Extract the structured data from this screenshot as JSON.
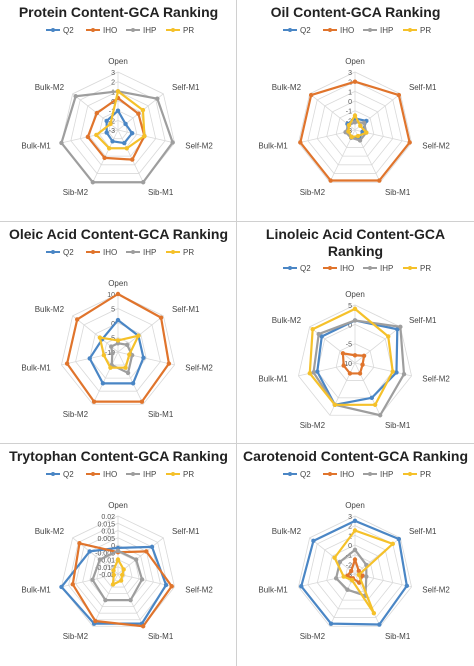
{
  "colors": {
    "Q2": "#4a86c5",
    "IHO": "#e0742c",
    "IHP": "#9e9e9e",
    "PR": "#f5c12a",
    "grid": "#d9d9d9"
  },
  "chart_data": [
    {
      "type": "radar",
      "title": "Protein Content-GCA Ranking",
      "categories": [
        "Open",
        "Self-M1",
        "Self-M2",
        "Sib-M1",
        "Sib-M2",
        "Bulk-M1",
        "Bulk-M2"
      ],
      "ticks": [
        "3",
        "2",
        "1",
        "0",
        "-1",
        "-2",
        "-3"
      ],
      "rmin": -3,
      "rmax": 3,
      "series": [
        {
          "name": "Q2",
          "values": [
            -1,
            -2,
            -1.5,
            -1.5,
            -1.7,
            -1.8,
            -1.5
          ]
        },
        {
          "name": "IHO",
          "values": [
            0.3,
            -0.3,
            -0.2,
            0.4,
            0.2,
            0.2,
            -0.2
          ]
        },
        {
          "name": "IHP",
          "values": [
            1,
            2.2,
            2.8,
            3,
            3,
            3,
            2.6
          ]
        },
        {
          "name": "PR",
          "values": [
            1,
            0.3,
            -0.2,
            -0.9,
            -0.9,
            -0.7,
            -2
          ]
        }
      ]
    },
    {
      "type": "radar",
      "title": "Oil Content-GCA Ranking",
      "categories": [
        "Open",
        "Self-M1",
        "Self-M2",
        "Sib-M1",
        "Sib-M2",
        "Bulk-M1",
        "Bulk-M2"
      ],
      "ticks": [
        "3",
        "2",
        "1",
        "0",
        "-1",
        "-2",
        "-3"
      ],
      "rmin": -3,
      "rmax": 3,
      "series": [
        {
          "name": "Q2",
          "values": [
            -1.8,
            -1.5,
            -2.2,
            -2,
            -2.2,
            -2.2,
            -2
          ]
        },
        {
          "name": "IHO",
          "values": [
            2,
            2.8,
            2.8,
            2.8,
            2.8,
            2.8,
            2.8
          ]
        },
        {
          "name": "IHP",
          "values": [
            -2.2,
            -1.8,
            -1.8,
            -1.8,
            -2.1,
            -2,
            -2.2
          ]
        },
        {
          "name": "PR",
          "values": [
            -1.5,
            -2.3,
            -1.8,
            -2.3,
            -2.2,
            -2.3,
            -2.2
          ]
        }
      ]
    },
    {
      "type": "radar",
      "title": "Oleic Acid Content-GCA Ranking",
      "categories": [
        "Open",
        "Self-M1",
        "Self-M2",
        "Sib-M1",
        "Sib-M2",
        "Bulk-M1",
        "Bulk-M2"
      ],
      "ticks": [
        "10",
        "5",
        "0",
        "-5",
        "-10"
      ],
      "rmin": -10,
      "rmax": 10,
      "series": [
        {
          "name": "Q2",
          "values": [
            1,
            -1,
            -1,
            2,
            2,
            0,
            -3
          ]
        },
        {
          "name": "IHO",
          "values": [
            10,
            9,
            8,
            9,
            9,
            8,
            8
          ]
        },
        {
          "name": "IHP",
          "values": [
            -7,
            -6,
            -5,
            -2,
            -5,
            -8,
            -7
          ]
        },
        {
          "name": "PR",
          "values": [
            -6,
            -1,
            -6,
            -4,
            -4,
            -5,
            -2
          ]
        }
      ]
    },
    {
      "type": "radar",
      "title": "Linoleic Acid Content-GCA Ranking",
      "categories": [
        "Open",
        "Self-M1",
        "Self-M2",
        "Sib-M1",
        "Sib-M2",
        "Bulk-M1",
        "Bulk-M2"
      ],
      "ticks": [
        "5",
        "0",
        "-5",
        "-10"
      ],
      "rmin": -10,
      "rmax": 5,
      "series": [
        {
          "name": "Q2",
          "values": [
            1,
            4,
            1,
            0,
            2,
            0,
            1
          ]
        },
        {
          "name": "IHO",
          "values": [
            -8,
            -7,
            -8,
            -7,
            -7,
            -7,
            -6
          ]
        },
        {
          "name": "IHP",
          "values": [
            1,
            5,
            3,
            5,
            2,
            1,
            2
          ]
        },
        {
          "name": "PR",
          "values": [
            4,
            1,
            0,
            2,
            2,
            2,
            4
          ]
        }
      ]
    },
    {
      "type": "radar",
      "title": "Trytophan Content-GCA Ranking",
      "categories": [
        "Open",
        "Self-M1",
        "Self-M2",
        "Sib-M1",
        "Sib-M2",
        "Bulk-M1",
        "Bulk-M2"
      ],
      "ticks": [
        "0.02",
        "0.015",
        "0.01",
        "0.005",
        "0",
        "-0.005",
        "-0.01",
        "-0.015",
        "-0.02"
      ],
      "rmin": -0.02,
      "rmax": 0.02,
      "series": [
        {
          "name": "Q2",
          "values": [
            -0.002,
            0.01,
            0.014,
            0.018,
            0.018,
            0.02,
            0.005
          ]
        },
        {
          "name": "IHO",
          "values": [
            -0.005,
            0.005,
            0.018,
            0.02,
            0.016,
            0.012,
            0.014
          ]
        },
        {
          "name": "IHP",
          "values": [
            -0.004,
            -0.004,
            -0.003,
            0,
            0,
            -0.002,
            -0.004
          ]
        },
        {
          "name": "PR",
          "values": [
            -0.01,
            -0.015,
            -0.017,
            -0.015,
            -0.012,
            -0.017,
            -0.016
          ]
        }
      ]
    },
    {
      "type": "radar",
      "title": "Carotenoid Content-GCA Ranking",
      "categories": [
        "Open",
        "Self-M1",
        "Self-M2",
        "Sib-M1",
        "Sib-M2",
        "Bulk-M1",
        "Bulk-M2"
      ],
      "ticks": [
        "3",
        "2",
        "1",
        "0",
        "-1",
        "-2",
        "-3"
      ],
      "rmin": -3,
      "rmax": 3,
      "series": [
        {
          "name": "Q2",
          "values": [
            2.5,
            2.8,
            2.5,
            2.8,
            2.7,
            2.7,
            2.5
          ]
        },
        {
          "name": "IHO",
          "values": [
            -1.5,
            -2.5,
            -2.2,
            -2,
            -2.5,
            -2.2,
            -2.5
          ]
        },
        {
          "name": "IHP",
          "values": [
            -0.5,
            -1.5,
            -1.8,
            -0.5,
            -1.2,
            -1,
            -1
          ]
        },
        {
          "name": "PR",
          "values": [
            1.5,
            2,
            -2.6,
            1.5,
            -2.3,
            -1.8,
            -0.3
          ]
        }
      ]
    }
  ]
}
